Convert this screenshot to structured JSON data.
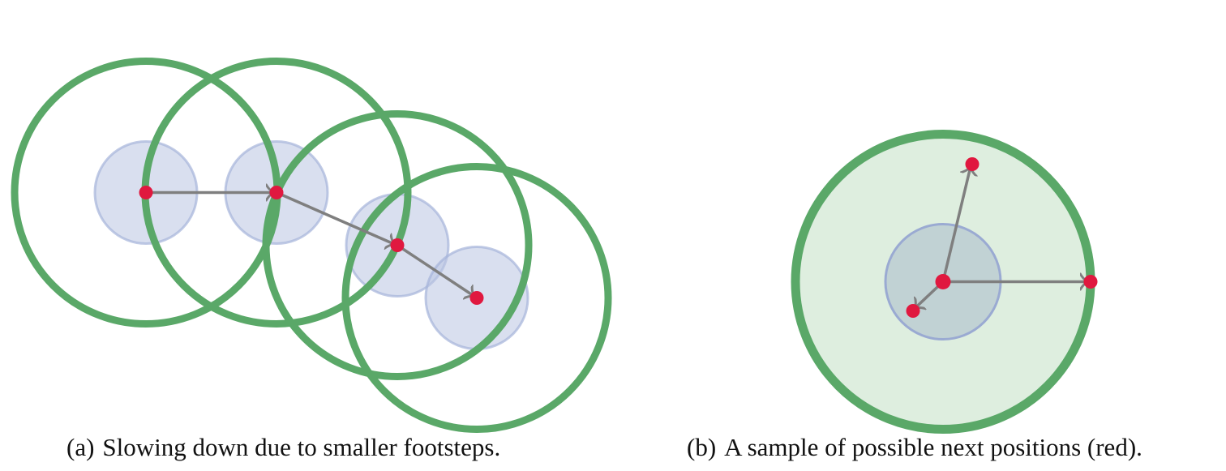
{
  "colors": {
    "outer_circle_stroke": "#5aa868",
    "outer_circle_fill_b": "#deeedf",
    "inner_circle_fill": "#b9c5e2",
    "inner_circle_stroke": "#a5b4da",
    "position_dot": "#e0183f",
    "arrow": "#7f7f7f"
  },
  "panel_a": {
    "sublabel": "(a)",
    "caption": "Slowing down due to smaller footsteps."
  },
  "panel_b": {
    "sublabel": "(b)",
    "caption": "A sample of possible next positions (red)."
  }
}
